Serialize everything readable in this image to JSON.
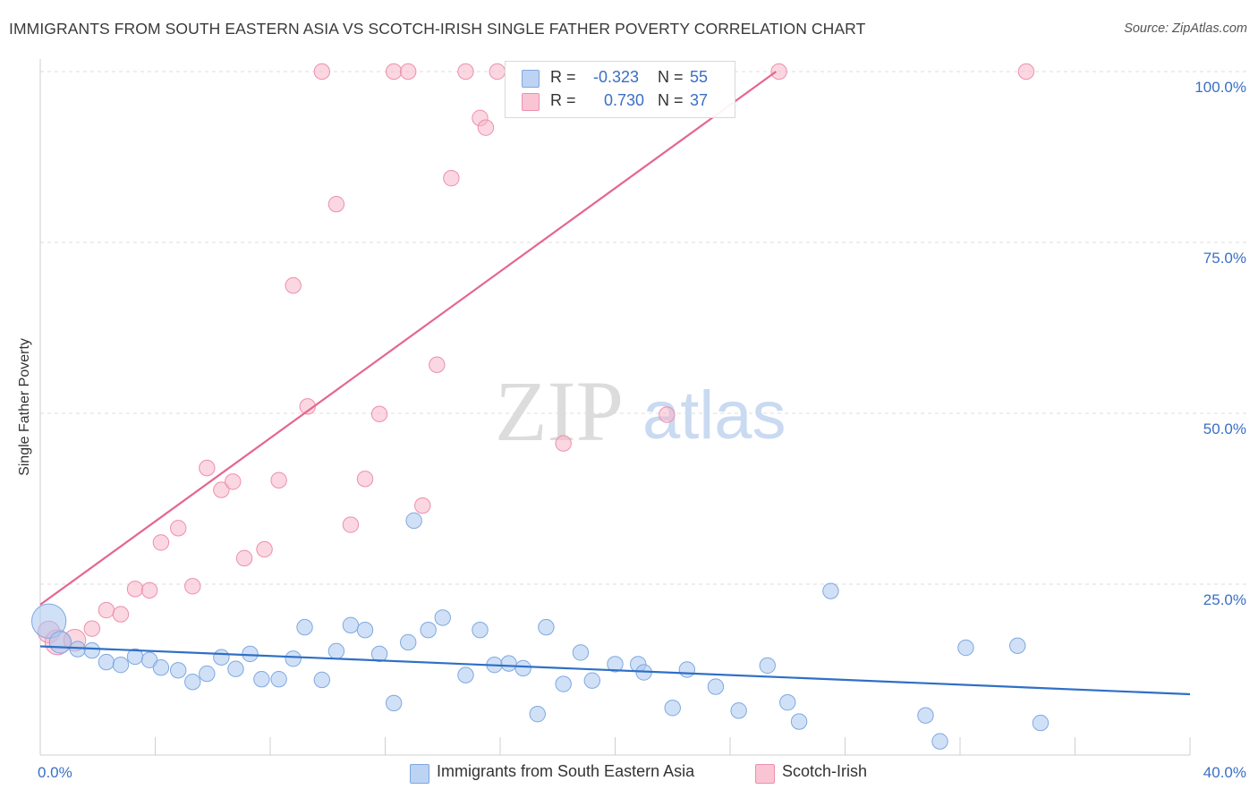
{
  "header": {
    "title": "IMMIGRANTS FROM SOUTH EASTERN ASIA VS SCOTCH-IRISH SINGLE FATHER POVERTY CORRELATION CHART",
    "source": "Source: ZipAtlas.com"
  },
  "watermark": {
    "zip": "ZIP",
    "atlas": "atlas"
  },
  "legend": {
    "r_label": "R =",
    "n_label": "N =",
    "rows": [
      {
        "name": "Immigrants from South Eastern Asia",
        "r": "-0.323",
        "n": "55",
        "color": "#a9c8f0"
      },
      {
        "name": "Scotch-Irish",
        "r": "0.730",
        "n": "37",
        "color": "#f7b6ca"
      }
    ]
  },
  "chart_data": {
    "type": "scatter",
    "title": "IMMIGRANTS FROM SOUTH EASTERN ASIA VS SCOTCH-IRISH SINGLE FATHER POVERTY CORRELATION CHART",
    "xlabel": "",
    "ylabel": "Single Father Poverty",
    "xlim": [
      0,
      40
    ],
    "ylim": [
      0,
      102
    ],
    "x_tick_labels": [
      "0.0%",
      "40.0%"
    ],
    "y_ticks": [
      25,
      50,
      75,
      100
    ],
    "y_tick_labels": [
      "25.0%",
      "50.0%",
      "75.0%",
      "100.0%"
    ],
    "grid": true,
    "legend_position": "top-center",
    "series": [
      {
        "name": "Immigrants from South Eastern Asia",
        "color": "#a9c8f0",
        "stroke": "#7fa8df",
        "line_color": "#2f6fc6",
        "trend": {
          "x": [
            0,
            40
          ],
          "y": [
            15.9,
            8.9
          ]
        },
        "points": [
          [
            0.3,
            19.6,
            22
          ],
          [
            0.7,
            16.5,
            14
          ],
          [
            1.3,
            15.5,
            10
          ],
          [
            1.8,
            15.3,
            10
          ],
          [
            2.3,
            13.6,
            10
          ],
          [
            2.8,
            13.2,
            10
          ],
          [
            3.3,
            14.4,
            10
          ],
          [
            3.8,
            13.9,
            10
          ],
          [
            4.2,
            12.8,
            10
          ],
          [
            4.8,
            12.4,
            10
          ],
          [
            5.3,
            10.7,
            10
          ],
          [
            5.8,
            11.9,
            10
          ],
          [
            6.3,
            14.3,
            10
          ],
          [
            6.8,
            12.6,
            10
          ],
          [
            7.3,
            14.8,
            10
          ],
          [
            7.7,
            11.1,
            10
          ],
          [
            8.3,
            11.1,
            10
          ],
          [
            8.8,
            14.1,
            10
          ],
          [
            9.2,
            18.7,
            10
          ],
          [
            9.8,
            11.0,
            10
          ],
          [
            10.3,
            15.2,
            10
          ],
          [
            10.8,
            19.0,
            10
          ],
          [
            11.3,
            18.3,
            10
          ],
          [
            11.8,
            14.8,
            10
          ],
          [
            12.3,
            7.6,
            10
          ],
          [
            12.8,
            16.5,
            10
          ],
          [
            13.0,
            34.3,
            10
          ],
          [
            13.5,
            18.3,
            10
          ],
          [
            14.0,
            20.1,
            10
          ],
          [
            14.8,
            11.7,
            10
          ],
          [
            15.3,
            18.3,
            10
          ],
          [
            15.8,
            13.2,
            10
          ],
          [
            16.3,
            13.4,
            10
          ],
          [
            16.8,
            12.7,
            10
          ],
          [
            17.3,
            6.0,
            10
          ],
          [
            17.6,
            18.7,
            10
          ],
          [
            18.2,
            10.4,
            10
          ],
          [
            18.8,
            15.0,
            10
          ],
          [
            19.2,
            10.9,
            10
          ],
          [
            20.0,
            13.3,
            10
          ],
          [
            20.8,
            13.3,
            10
          ],
          [
            21.0,
            12.1,
            10
          ],
          [
            22.0,
            6.9,
            10
          ],
          [
            22.5,
            12.5,
            10
          ],
          [
            23.5,
            10.0,
            10
          ],
          [
            24.3,
            6.5,
            10
          ],
          [
            25.3,
            13.1,
            10
          ],
          [
            26.0,
            7.7,
            10
          ],
          [
            26.4,
            4.9,
            10
          ],
          [
            27.5,
            24.0,
            10
          ],
          [
            30.8,
            5.8,
            10
          ],
          [
            31.3,
            2.0,
            10
          ],
          [
            32.2,
            15.7,
            10
          ],
          [
            34.0,
            16.0,
            10
          ],
          [
            34.8,
            4.7,
            10
          ]
        ]
      },
      {
        "name": "Scotch-Irish",
        "color": "#f7b6ca",
        "stroke": "#ec8fae",
        "line_color": "#e4668e",
        "trend": {
          "x": [
            0,
            25.6
          ],
          "y": [
            22.0,
            100.0
          ]
        },
        "points": [
          [
            0.3,
            18.0,
            14
          ],
          [
            0.6,
            16.5,
            16
          ],
          [
            1.2,
            16.8,
            14
          ],
          [
            1.8,
            18.5,
            10
          ],
          [
            2.3,
            21.2,
            10
          ],
          [
            2.8,
            20.6,
            10
          ],
          [
            3.3,
            24.3,
            10
          ],
          [
            3.8,
            24.1,
            10
          ],
          [
            4.2,
            31.1,
            10
          ],
          [
            4.8,
            33.2,
            10
          ],
          [
            5.3,
            24.7,
            10
          ],
          [
            5.8,
            42.0,
            10
          ],
          [
            6.3,
            38.8,
            10
          ],
          [
            6.7,
            40.0,
            10
          ],
          [
            7.1,
            28.8,
            10
          ],
          [
            7.8,
            30.1,
            10
          ],
          [
            8.3,
            40.2,
            10
          ],
          [
            8.8,
            68.7,
            10
          ],
          [
            9.3,
            51.0,
            10
          ],
          [
            9.8,
            100.0,
            10
          ],
          [
            10.3,
            80.6,
            10
          ],
          [
            10.8,
            33.7,
            10
          ],
          [
            11.3,
            40.4,
            10
          ],
          [
            11.8,
            49.9,
            10
          ],
          [
            12.3,
            100.0,
            10
          ],
          [
            12.8,
            100.0,
            10
          ],
          [
            13.3,
            36.5,
            10
          ],
          [
            13.8,
            57.1,
            10
          ],
          [
            14.3,
            84.4,
            10
          ],
          [
            14.8,
            100.0,
            10
          ],
          [
            15.3,
            93.2,
            10
          ],
          [
            15.5,
            91.8,
            10
          ],
          [
            15.9,
            100.0,
            10
          ],
          [
            18.2,
            45.6,
            10
          ],
          [
            21.8,
            49.8,
            10
          ],
          [
            25.7,
            100.0,
            10
          ],
          [
            34.3,
            100.0,
            10
          ]
        ]
      }
    ]
  }
}
